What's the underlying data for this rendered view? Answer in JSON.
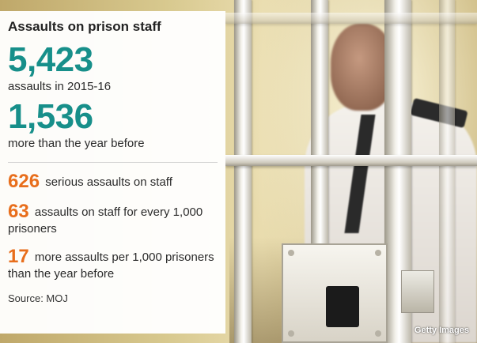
{
  "panel": {
    "title": "Assaults on prison staff",
    "headline_1": {
      "number": "5,423",
      "caption": "assaults in 2015-16"
    },
    "headline_2": {
      "number": "1,536",
      "caption": "more than the year before"
    },
    "stats": [
      {
        "number": "626",
        "text": "serious assaults on staff"
      },
      {
        "number": "63",
        "text": "assaults on staff for every 1,000 prisoners"
      },
      {
        "number": "17",
        "text": "more assaults per 1,000 prisoners than the year before"
      }
    ],
    "source": "Source: MOJ"
  },
  "photo": {
    "credit": "Getty Images"
  },
  "colors": {
    "headline": "#178f8a",
    "stat_number": "#e86e1c",
    "text": "#2b2b2b"
  }
}
